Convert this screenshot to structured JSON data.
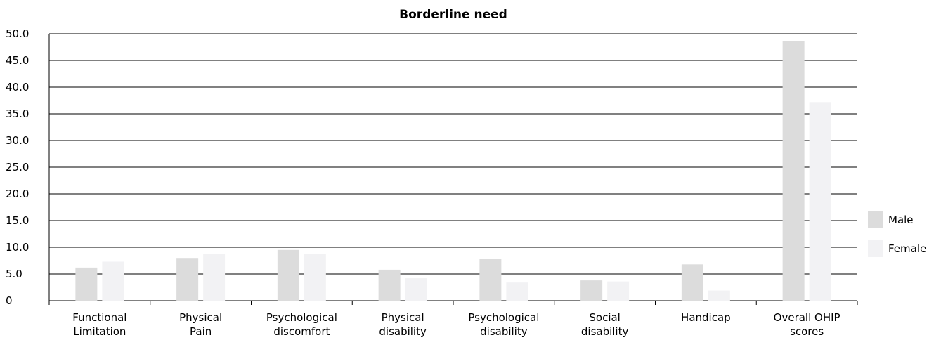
{
  "chart_data": {
    "type": "bar",
    "title": "Borderline need",
    "xlabel": "",
    "ylabel": "",
    "categories": [
      [
        "Functional",
        "Limitation"
      ],
      [
        "Physical",
        "Pain"
      ],
      [
        "Psychological",
        "discomfort"
      ],
      [
        "Physical",
        "disability"
      ],
      [
        "Psychological",
        "disability"
      ],
      [
        "Social",
        "disability"
      ],
      [
        "Handicap"
      ],
      [
        "Overall OHIP",
        "scores"
      ]
    ],
    "series": [
      {
        "name": "Male",
        "color": "#dcdcdc",
        "values": [
          6.2,
          8.0,
          9.5,
          5.8,
          7.8,
          3.8,
          6.8,
          48.6
        ]
      },
      {
        "name": "Female",
        "color": "#f2f2f4",
        "values": [
          7.3,
          8.8,
          8.7,
          4.2,
          3.4,
          3.6,
          1.9,
          37.2
        ]
      }
    ],
    "ylim": [
      0,
      50
    ],
    "yticks": [
      0,
      5,
      10,
      15,
      20,
      25,
      30,
      35,
      40,
      45,
      50
    ],
    "ytick_labels": [
      "0",
      "5.0",
      "10.0",
      "15.0",
      "20.0",
      "25.0",
      "30.0",
      "35.0",
      "40.0",
      "45.0",
      "50.0"
    ],
    "grid": true,
    "legend_position": "right"
  }
}
